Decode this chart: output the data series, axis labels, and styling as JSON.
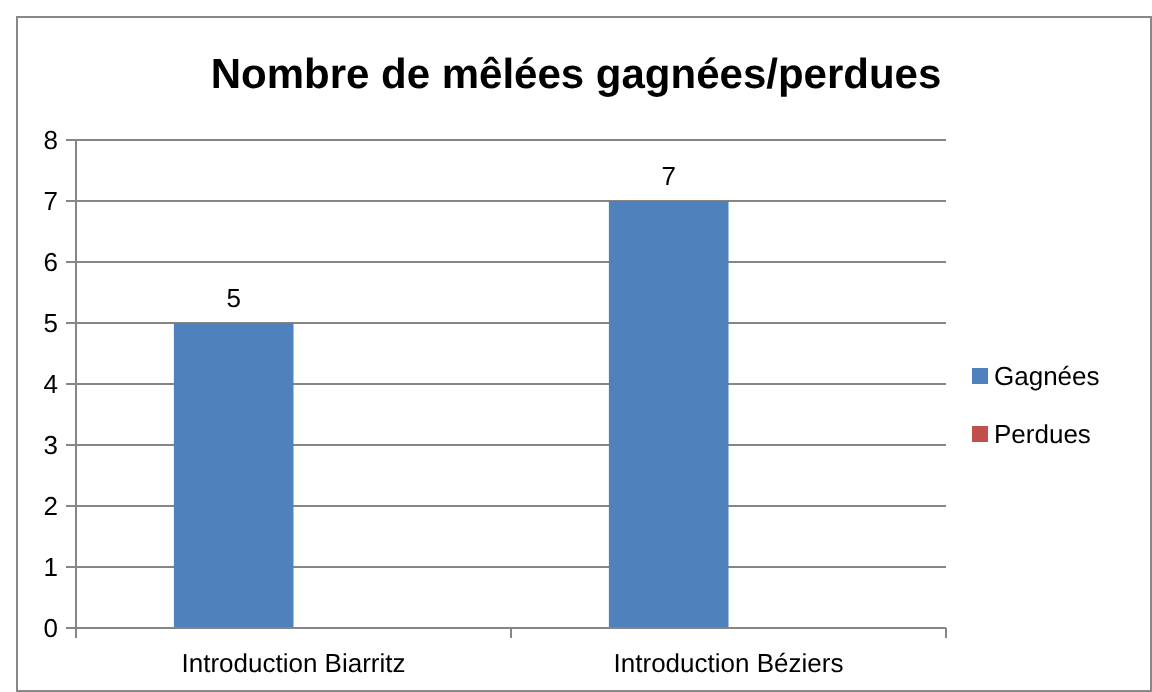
{
  "chart_data": {
    "type": "bar",
    "title": "Nombre de mêlées gagnées/perdues",
    "categories": [
      "Introduction Biarritz",
      "Introduction Béziers"
    ],
    "series": [
      {
        "name": "Gagnées",
        "color": "#4f81bd",
        "values": [
          5,
          7
        ],
        "value_labels": [
          "5",
          "7"
        ]
      },
      {
        "name": "Perdues",
        "color": "#c0504d",
        "values": [
          null,
          null
        ],
        "value_labels": [
          null,
          null
        ]
      }
    ],
    "ylim": [
      0,
      8
    ],
    "yticks": [
      0,
      1,
      2,
      3,
      4,
      5,
      6,
      7,
      8
    ],
    "grid": "y",
    "legend": "right"
  }
}
